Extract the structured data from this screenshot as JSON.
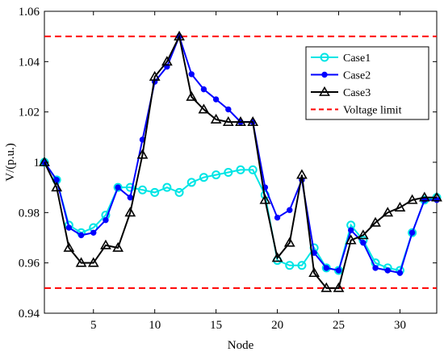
{
  "chart_data": {
    "type": "line",
    "title": "",
    "xlabel": "Node",
    "ylabel": "V/(p.u.)",
    "xlim": [
      1,
      33
    ],
    "ylim": [
      0.94,
      1.06
    ],
    "xticks": [
      5,
      10,
      15,
      20,
      25,
      30
    ],
    "yticks": [
      0.94,
      0.96,
      0.98,
      1,
      1.02,
      1.04,
      1.06
    ],
    "ytick_labels": [
      "0.94",
      "0.96",
      "0.98",
      "1",
      "1.02",
      "1.04",
      "1.06"
    ],
    "grid": false,
    "legend_position": "top-right",
    "series": [
      {
        "name": "Case1",
        "color": "#00e5e5",
        "marker": "circle",
        "x": [
          1,
          2,
          3,
          4,
          5,
          6,
          7,
          8,
          9,
          10,
          11,
          12,
          13,
          14,
          15,
          16,
          17,
          18,
          19,
          20,
          21,
          22,
          23,
          24,
          25,
          26,
          27,
          28,
          29,
          30,
          31,
          32,
          33
        ],
        "values": [
          1.0,
          0.993,
          0.975,
          0.972,
          0.974,
          0.979,
          0.99,
          0.99,
          0.989,
          0.988,
          0.99,
          0.988,
          0.992,
          0.994,
          0.995,
          0.996,
          0.997,
          0.997,
          0.987,
          0.961,
          0.959,
          0.959,
          0.966,
          0.958,
          0.957,
          0.975,
          0.969,
          0.96,
          0.958,
          0.957,
          0.972,
          0.985,
          0.986
        ]
      },
      {
        "name": "Case2",
        "color": "#0000ff",
        "marker": "dot",
        "x": [
          1,
          2,
          3,
          4,
          5,
          6,
          7,
          8,
          9,
          10,
          11,
          12,
          13,
          14,
          15,
          16,
          17,
          18,
          19,
          20,
          21,
          22,
          23,
          24,
          25,
          26,
          27,
          28,
          29,
          30,
          31,
          32,
          33
        ],
        "values": [
          1.0,
          0.993,
          0.974,
          0.971,
          0.972,
          0.977,
          0.99,
          0.986,
          1.009,
          1.032,
          1.038,
          1.05,
          1.035,
          1.029,
          1.025,
          1.021,
          1.016,
          1.016,
          0.99,
          0.978,
          0.981,
          0.993,
          0.964,
          0.958,
          0.957,
          0.973,
          0.968,
          0.958,
          0.957,
          0.956,
          0.972,
          0.985,
          0.985
        ]
      },
      {
        "name": "Case3",
        "color": "#000000",
        "marker": "triangle",
        "x": [
          1,
          2,
          3,
          4,
          5,
          6,
          7,
          8,
          9,
          10,
          11,
          12,
          13,
          14,
          15,
          16,
          17,
          18,
          19,
          20,
          21,
          22,
          23,
          24,
          25,
          26,
          27,
          28,
          29,
          30,
          31,
          32,
          33
        ],
        "values": [
          1.0,
          0.99,
          0.966,
          0.96,
          0.96,
          0.967,
          0.966,
          0.98,
          1.003,
          1.034,
          1.04,
          1.05,
          1.026,
          1.021,
          1.017,
          1.016,
          1.016,
          1.016,
          0.985,
          0.962,
          0.968,
          0.995,
          0.956,
          0.95,
          0.95,
          0.969,
          0.971,
          0.976,
          0.98,
          0.982,
          0.985,
          0.986,
          0.986
        ]
      }
    ],
    "reference_lines": [
      {
        "name": "Voltage limit",
        "color": "#ff0000",
        "style": "dashed",
        "y": [
          1.05,
          0.95
        ]
      }
    ],
    "legend": [
      "Case1",
      "Case2",
      "Case3",
      "Voltage limit"
    ]
  }
}
